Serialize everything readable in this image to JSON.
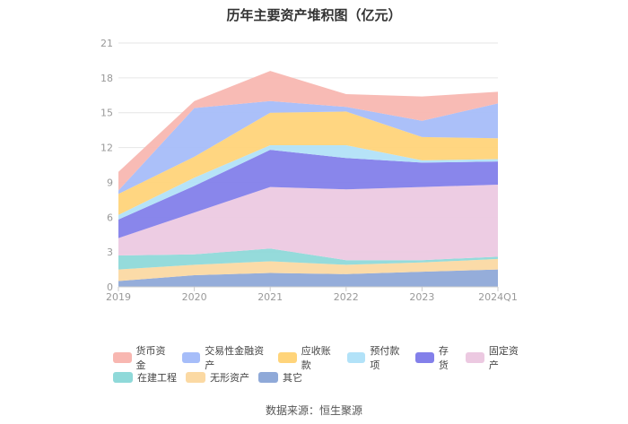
{
  "title": "历年主要资产堆积图（亿元）",
  "source_text": "数据来源：恒生聚源",
  "chart_data": {
    "type": "area",
    "stacked": true,
    "title": "历年主要资产堆积图（亿元）",
    "xlabel": "",
    "ylabel": "",
    "x": [
      "2019",
      "2020",
      "2021",
      "2022",
      "2023",
      "2024Q1"
    ],
    "ylim": [
      0,
      21
    ],
    "yticks": [
      0,
      3,
      6,
      9,
      12,
      15,
      18,
      21
    ],
    "grid": true,
    "legend_position": "bottom",
    "series": [
      {
        "name": "其它",
        "color": "#8fa9d8",
        "values": [
          0.5,
          1.0,
          1.2,
          1.1,
          1.3,
          1.5
        ]
      },
      {
        "name": "无形资产",
        "color": "#fbd9a3",
        "values": [
          1.0,
          0.9,
          1.0,
          0.8,
          0.8,
          0.9
        ]
      },
      {
        "name": "在建工程",
        "color": "#8fd9d9",
        "values": [
          1.2,
          0.9,
          1.1,
          0.4,
          0.2,
          0.2
        ]
      },
      {
        "name": "固定资产",
        "color": "#ecc9e1",
        "values": [
          1.5,
          3.6,
          5.3,
          6.1,
          6.3,
          6.2
        ]
      },
      {
        "name": "存货",
        "color": "#8380ea",
        "values": [
          1.6,
          2.3,
          3.2,
          2.7,
          2.1,
          2.0
        ]
      },
      {
        "name": "预付款项",
        "color": "#b2e2f8",
        "values": [
          0.4,
          0.7,
          0.4,
          1.1,
          0.2,
          0.2
        ]
      },
      {
        "name": "应收账款",
        "color": "#ffd47a",
        "values": [
          1.8,
          1.8,
          2.8,
          2.9,
          2.0,
          1.8
        ]
      },
      {
        "name": "交易性金融资产",
        "color": "#a6bdf9",
        "values": [
          0.3,
          4.2,
          1.0,
          0.4,
          1.4,
          3.0
        ]
      },
      {
        "name": "货币资金",
        "color": "#f8b7b1",
        "values": [
          1.6,
          0.6,
          2.6,
          1.1,
          2.1,
          1.0
        ]
      }
    ],
    "legend_rows": [
      [
        "货币资金",
        "交易性金融资产",
        "应收账款",
        "预付款项",
        "存货",
        "固定资产"
      ],
      [
        "在建工程",
        "无形资产",
        "其它"
      ]
    ]
  }
}
